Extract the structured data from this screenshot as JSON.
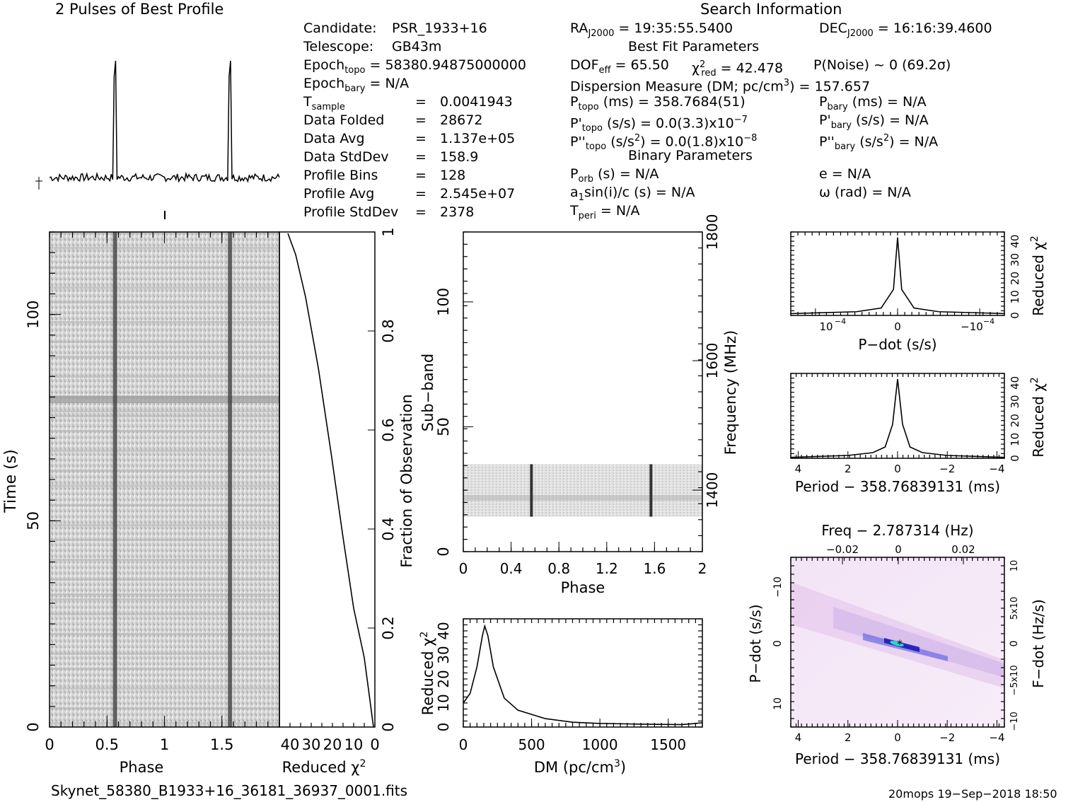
{
  "profile_title": "2 Pulses of Best Profile",
  "search_title": "Search Information",
  "candidate": {
    "label": "Candidate:",
    "value": "PSR_1933+16"
  },
  "telescope": {
    "label": "Telescope:",
    "value": "GB43m"
  },
  "epoch_topo": {
    "label": "Epoch",
    "sub": "topo",
    "value": "= 58380.94875000000"
  },
  "epoch_bary": {
    "label": "Epoch",
    "sub": "bary",
    "value": "= N/A"
  },
  "stats": [
    {
      "label": "T",
      "sub": "sample",
      "value": "0.0041943"
    },
    {
      "label": "Data Folded",
      "sub": "",
      "value": "28672"
    },
    {
      "label": "Data Avg",
      "sub": "",
      "value": "1.137e+05"
    },
    {
      "label": "Data StdDev",
      "sub": "",
      "value": "158.9"
    },
    {
      "label": "Profile Bins",
      "sub": "",
      "value": "128"
    },
    {
      "label": "Profile Avg",
      "sub": "",
      "value": "2.545e+07"
    },
    {
      "label": "Profile StdDev",
      "sub": "",
      "value": "2378"
    }
  ],
  "equals": "=",
  "ra": {
    "label": "RA",
    "sub": "J2000",
    "value": "= 19:35:55.5400"
  },
  "dec": {
    "label": "DEC",
    "sub": "J2000",
    "value": "= 16:16:39.4600"
  },
  "best_fit_title": "Best Fit Parameters",
  "dof": {
    "label": "DOF",
    "sub": "eff",
    "value": "= 65.50"
  },
  "chi2": {
    "label": "χ",
    "sup": "2",
    "sub": "red",
    "value": "= 42.478"
  },
  "pnoise": "P(Noise) ~ 0    (69.2σ)",
  "dm_line": {
    "pre": "Dispersion Measure (DM; pc/cm",
    "sup": "3",
    "post": ") = 157.657"
  },
  "p_topo": {
    "label": "P",
    "sub": "topo",
    "value": "(ms) =  358.7684(51)"
  },
  "pd_topo": {
    "label": "P'",
    "sub": "topo",
    "value": "(s/s) = 0.0(3.3)x10",
    "sup": "−7"
  },
  "pdd_topo": {
    "label": "P''",
    "sub": "topo",
    "value": "(s/s",
    "vsup": "2",
    "value2": ") = 0.0(1.8)x10",
    "sup": "−8"
  },
  "p_bary": {
    "label": "P",
    "sub": "bary",
    "value": "(ms) = N/A"
  },
  "pd_bary": {
    "label": "P'",
    "sub": "bary",
    "value": "(s/s) = N/A"
  },
  "pdd_bary": {
    "label": "P''",
    "sub": "bary",
    "value": "(s/s",
    "vsup": "2",
    "value2": ") = N/A"
  },
  "binary_title": "Binary Parameters",
  "p_orb": {
    "label": "P",
    "sub": "orb",
    "value": "(s) = N/A"
  },
  "a1": "a",
  "a1_sub": "1",
  "a1_value": "sin(i)/c (s) = N/A",
  "t_peri": {
    "label": "T",
    "sub": "peri",
    "value": "= N/A"
  },
  "ecc": "e = N/A",
  "omega": "ω (rad) = N/A",
  "filename": "Skynet_58380_B1933+16_36181_36937_0001.fits",
  "footer_right": "20mops 19−Sep−2018 18:50",
  "chart_data": [
    {
      "type": "line",
      "id": "profile",
      "title": "2 Pulses of Best Profile",
      "x": [
        0,
        0.56,
        0.57,
        0.58,
        1.0,
        1.56,
        1.57,
        1.58,
        2.0
      ],
      "values": [
        0.05,
        0.06,
        1.0,
        0.06,
        0.05,
        0.06,
        1.0,
        0.06,
        0.05
      ]
    },
    {
      "type": "heatmap",
      "id": "time-phase",
      "xlabel": "Phase",
      "ylabel": "Time (s)",
      "xlim": [
        0,
        2
      ],
      "ylim": [
        0,
        120
      ],
      "xticks": [
        "0",
        "0.5",
        "1",
        "1.5"
      ],
      "yticks": [
        "0",
        "50",
        "100"
      ],
      "pulse_phases": [
        0.57,
        1.57
      ]
    },
    {
      "type": "line",
      "id": "chi2-vs-time",
      "xlabel": "Reduced χ",
      "xlabel_sup": "2",
      "ylabel": "Fraction of Observation",
      "xlim": [
        45,
        0
      ],
      "ylim": [
        0,
        1
      ],
      "xticks": [
        "40",
        "30",
        "20",
        "10",
        "0"
      ],
      "yticks": [
        "0.2",
        "0.4",
        "0.6",
        "0.8",
        "1"
      ],
      "x": [
        0,
        5,
        12,
        20,
        30,
        38,
        43
      ],
      "y": [
        0,
        0.08,
        0.2,
        0.4,
        0.65,
        0.85,
        1.0
      ]
    },
    {
      "type": "heatmap",
      "id": "subband-phase",
      "xlabel": "Phase",
      "ylabel": "Sub−band",
      "y2label": "Frequency (MHz)",
      "xlim": [
        0,
        2
      ],
      "ylim": [
        0,
        128
      ],
      "xticks": [
        "0",
        "0.4",
        "0.8",
        "1.2",
        "1.6",
        "2"
      ],
      "yticks": [
        "0",
        "50",
        "100"
      ],
      "y2ticks": [
        "1400",
        "1600",
        "1800"
      ],
      "data_band": [
        14,
        35
      ]
    },
    {
      "type": "line",
      "id": "chi2-vs-dm",
      "xlabel": "DM (pc/cm",
      "xlabel_sup": "3",
      "xlabel_post": ")",
      "ylabel": "Reduced χ",
      "ylabel_sup": "2",
      "xlim": [
        0,
        1750
      ],
      "ylim": [
        0,
        45
      ],
      "xticks": [
        "0",
        "500",
        "1000",
        "1500"
      ],
      "yticks": [
        "0",
        "10",
        "20",
        "30",
        "40"
      ],
      "x": [
        0,
        50,
        100,
        140,
        157,
        180,
        220,
        300,
        400,
        600,
        800,
        1000,
        1300,
        1600,
        1700,
        1750
      ],
      "y": [
        10,
        14,
        25,
        38,
        42,
        38,
        25,
        12,
        7,
        3.5,
        2,
        1.5,
        1.2,
        1.0,
        1.5,
        1.8
      ]
    },
    {
      "type": "line",
      "id": "chi2-vs-pdot",
      "xlabel": "P−dot (s/s)",
      "ylabel": "Reduced χ",
      "ylabel_sup": "2",
      "xlim": [
        1.3,
        -1.3
      ],
      "ylim": [
        0,
        45
      ],
      "xticks": [
        "10^−4",
        "0",
        "−10^−4"
      ],
      "yticks": [
        "0",
        "10",
        "20",
        "30",
        "40"
      ],
      "x": [
        1.3,
        0.5,
        0.2,
        0.05,
        0,
        -0.05,
        -0.2,
        -0.5,
        -1.3
      ],
      "y": [
        1,
        2,
        4,
        14,
        42,
        14,
        4,
        2,
        1
      ]
    },
    {
      "type": "line",
      "id": "chi2-vs-period",
      "xlabel": "Period − 358.76839131 (ms)",
      "ylabel": "Reduced χ",
      "ylabel_sup": "2",
      "xlim": [
        4.3,
        -4.3
      ],
      "ylim": [
        0,
        45
      ],
      "xticks": [
        "4",
        "2",
        "0",
        "−2",
        "−4"
      ],
      "yticks": [
        "0",
        "10",
        "20",
        "30",
        "40"
      ],
      "x": [
        4.3,
        2,
        1,
        0.5,
        0.2,
        0,
        -0.2,
        -0.5,
        -1,
        -2,
        -4.3
      ],
      "y": [
        0.5,
        1.5,
        3,
        6,
        18,
        42,
        18,
        6,
        3,
        1.5,
        0.5
      ]
    },
    {
      "type": "heatmap",
      "id": "pdot-period",
      "title": "Freq − 2.787314 (Hz)",
      "xlabel": "Period − 358.76839131 (ms)",
      "ylabel": "P−dot (s/s)",
      "y2label": "F−dot (Hz/s)",
      "xlim": [
        4.3,
        -4.3
      ],
      "xticks": [
        "4",
        "2",
        "0",
        "−2",
        "−4"
      ],
      "x2ticks": [
        "−0.02",
        "0",
        "0.02"
      ],
      "yticks": [
        "10^−4",
        "0",
        "−10^−4"
      ],
      "y2ticks": [
        "−10^−3",
        "−5x10^−4",
        "0",
        "5x10^−4",
        "10^−3"
      ],
      "best": [
        0,
        0
      ]
    }
  ]
}
